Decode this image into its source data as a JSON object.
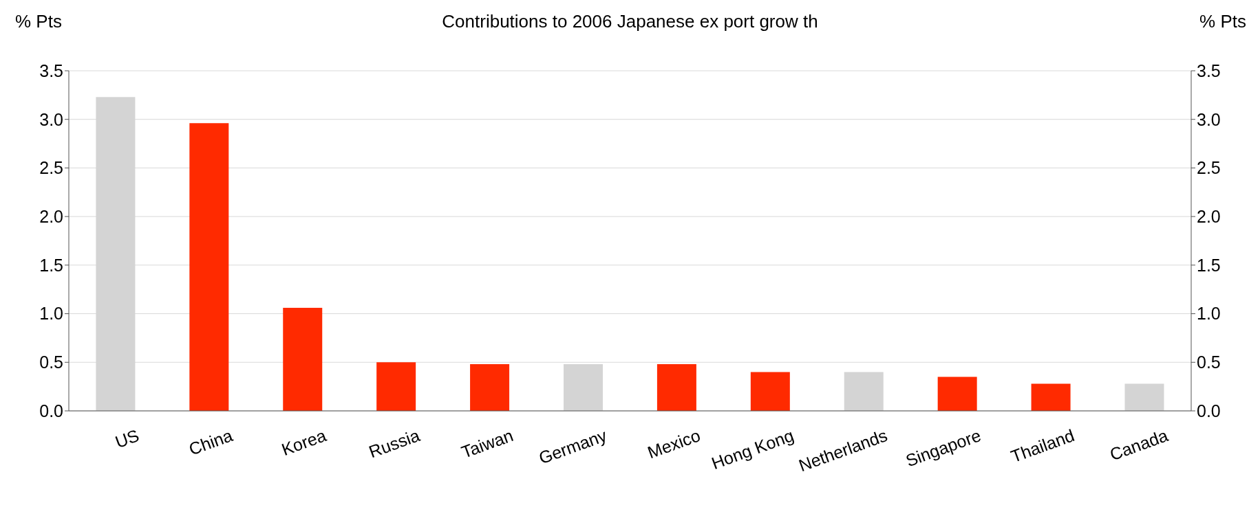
{
  "chart_data": {
    "type": "bar",
    "title": "Contributions to 2006 Japanese ex port grow th",
    "ylabel": "% Pts",
    "y2label": "% Pts",
    "categories": [
      "US",
      "China",
      "Korea",
      "Russia",
      "Taiwan",
      "Germany",
      "Mexico",
      "Hong Kong",
      "Netherlands",
      "Singapore",
      "Thailand",
      "Canada"
    ],
    "values": [
      3.23,
      2.96,
      1.06,
      0.5,
      0.48,
      0.48,
      0.48,
      0.4,
      0.4,
      0.35,
      0.28,
      0.28
    ],
    "colors": [
      "#d4d4d4",
      "#ff2a00",
      "#ff2a00",
      "#ff2a00",
      "#ff2a00",
      "#d4d4d4",
      "#ff2a00",
      "#ff2a00",
      "#d4d4d4",
      "#ff2a00",
      "#ff2a00",
      "#d4d4d4"
    ],
    "ylim": [
      0,
      3.5
    ],
    "yticks": [
      {
        "value": 0,
        "label": "0.0"
      },
      {
        "value": 0.5,
        "label": "0.5"
      },
      {
        "value": 1,
        "label": "1.0"
      },
      {
        "value": 1.5,
        "label": "1.5"
      },
      {
        "value": 2,
        "label": "2.0"
      },
      {
        "value": 2.5,
        "label": "2.5"
      },
      {
        "value": 3,
        "label": "3.0"
      },
      {
        "value": 3.5,
        "label": "3.5"
      }
    ],
    "y2lim": [
      0,
      3.5
    ],
    "y2ticks": [
      {
        "value": 0,
        "label": "0.0"
      },
      {
        "value": 0.5,
        "label": "0.5"
      },
      {
        "value": 1,
        "label": "1.0"
      },
      {
        "value": 1.5,
        "label": "1.5"
      },
      {
        "value": 2,
        "label": "2.0"
      },
      {
        "value": 2.5,
        "label": "2.5"
      },
      {
        "value": 3,
        "label": "3.0"
      },
      {
        "value": 3.5,
        "label": "3.5"
      }
    ],
    "grid": "y",
    "legend": false
  }
}
